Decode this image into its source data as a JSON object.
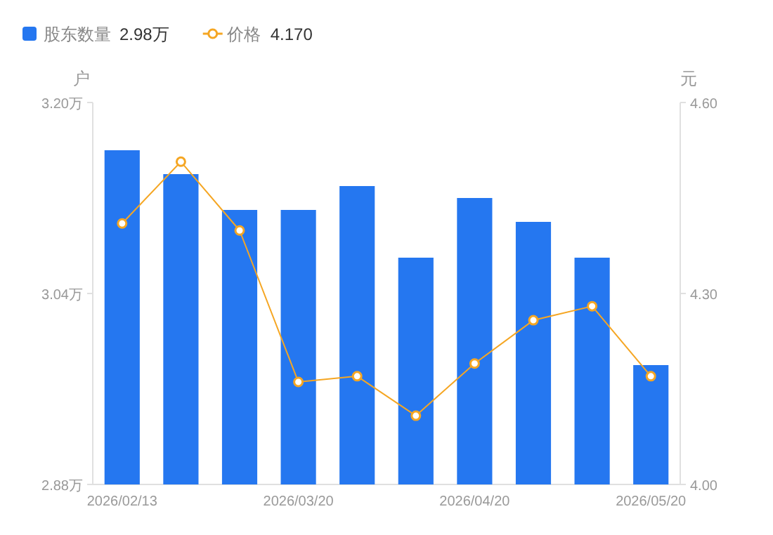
{
  "chart_data": {
    "type": "bar",
    "ylabel": "户",
    "y2label": "元",
    "categories": [
      "2026/02/13",
      null,
      null,
      "2026/03/20",
      null,
      null,
      "2026/04/20",
      null,
      null,
      "2026/05/20"
    ],
    "series": [
      {
        "name": "股东数量",
        "color": "#2577f0",
        "values": [
          3.16,
          3.14,
          3.11,
          3.11,
          3.13,
          3.07,
          3.12,
          3.1,
          3.07,
          2.98
        ]
      },
      {
        "name": "价格",
        "type": "line",
        "axis": "y2",
        "color": "#f5a623",
        "marker": "circle",
        "values": [
          4.41,
          4.507,
          4.399,
          4.161,
          4.17,
          4.108,
          4.19,
          4.258,
          4.28,
          4.17
        ]
      }
    ],
    "ylim": [
      2.88,
      3.2
    ],
    "yticks": [
      {
        "value": 2.88,
        "label": "2.88万"
      },
      {
        "value": 3.04,
        "label": "3.04万"
      },
      {
        "value": 3.2,
        "label": "3.20万"
      }
    ],
    "y2lim": [
      4.0,
      4.6
    ],
    "y2ticks": [
      {
        "value": 4.0,
        "label": "4.00"
      },
      {
        "value": 4.3,
        "label": "4.30"
      },
      {
        "value": 4.6,
        "label": "4.60"
      }
    ],
    "legend": "top left",
    "grid": false,
    "annotations": [
      "2.98万",
      "4.170"
    ]
  }
}
